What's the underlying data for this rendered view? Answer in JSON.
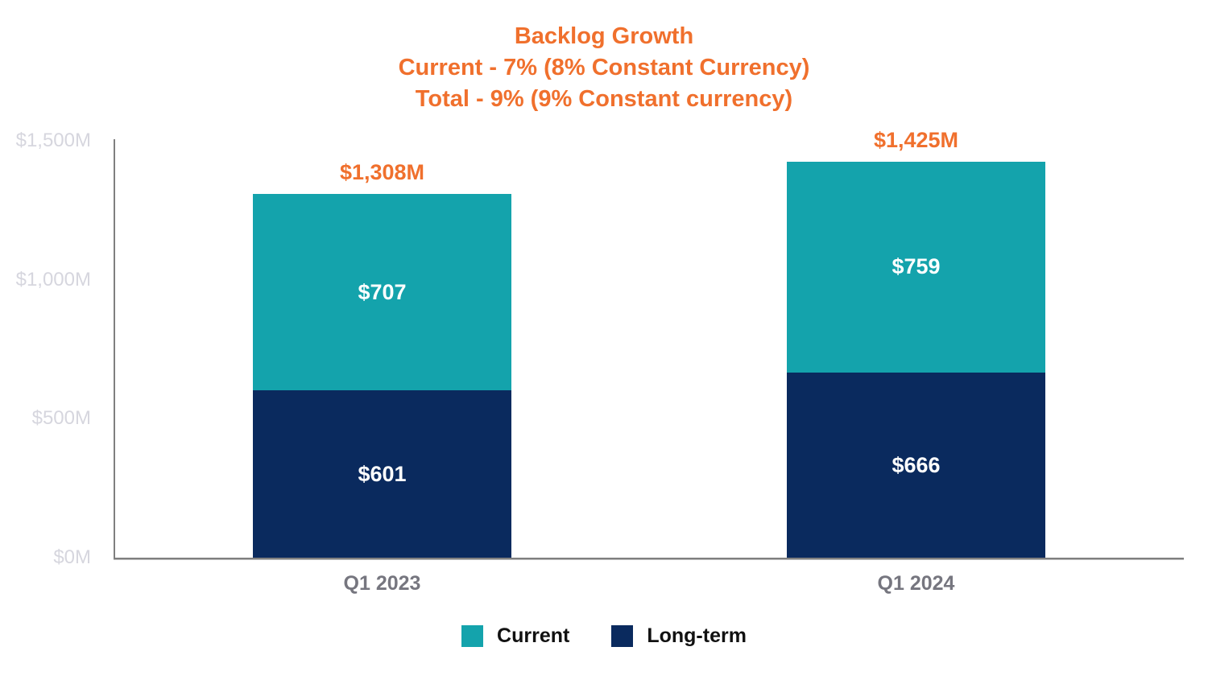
{
  "title": {
    "line1": "Backlog Growth",
    "line2": "Current - 7% (8% Constant Currency)",
    "line3": "Total - 9% (9% Constant currency)"
  },
  "colors": {
    "accent_orange": "#F0702D",
    "teal": "#14A3AC",
    "navy": "#0A2A5E",
    "axis_line": "#7F7F7F",
    "y_tick_text": "#D6D6DE",
    "x_tick_text": "#76767F",
    "legend_text": "#111111"
  },
  "chart_data": {
    "type": "bar",
    "stacked": true,
    "title": "Backlog Growth / Current - 7% (8% Constant Currency) / Total - 9% (9% Constant currency)",
    "categories": [
      "Q1 2023",
      "Q1 2024"
    ],
    "series": [
      {
        "name": "Long-term",
        "color_key": "navy",
        "values": [
          601,
          666
        ],
        "labels": [
          "$601",
          "$666"
        ]
      },
      {
        "name": "Current",
        "color_key": "teal",
        "values": [
          707,
          759
        ],
        "labels": [
          "$707",
          "$759"
        ]
      }
    ],
    "totals": [
      1308,
      1425
    ],
    "total_labels": [
      "$1,308M",
      "$1,425M"
    ],
    "ylim": [
      0,
      1500
    ],
    "y_ticks": [
      {
        "value": 0,
        "label": "$0M"
      },
      {
        "value": 500,
        "label": "$500M"
      },
      {
        "value": 1000,
        "label": "$1,000M"
      },
      {
        "value": 1500,
        "label": "$1,500M"
      }
    ],
    "grid": false,
    "legend_position": "bottom"
  },
  "legend": {
    "items": [
      {
        "label": "Current",
        "color_key": "teal"
      },
      {
        "label": "Long-term",
        "color_key": "navy"
      }
    ]
  }
}
